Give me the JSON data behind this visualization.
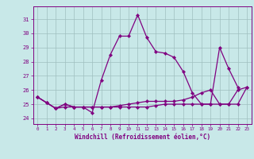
{
  "hours": [
    0,
    1,
    2,
    3,
    4,
    5,
    6,
    7,
    8,
    9,
    10,
    11,
    12,
    13,
    14,
    15,
    16,
    17,
    18,
    19,
    20,
    21,
    22,
    23
  ],
  "line1": [
    25.5,
    25.1,
    24.7,
    24.8,
    24.8,
    24.8,
    24.4,
    26.7,
    28.5,
    29.8,
    29.8,
    31.3,
    29.7,
    28.7,
    28.6,
    28.3,
    27.3,
    25.8,
    25.0,
    25.0,
    29.0,
    27.5,
    26.2,
    null
  ],
  "line2": [
    25.5,
    25.1,
    24.7,
    25.0,
    24.8,
    24.8,
    24.8,
    24.8,
    24.8,
    24.9,
    25.0,
    25.1,
    25.2,
    25.2,
    25.2,
    25.2,
    25.3,
    25.5,
    25.8,
    26.0,
    25.0,
    25.0,
    26.0,
    26.2
  ],
  "line3": [
    25.5,
    25.1,
    24.7,
    25.0,
    24.8,
    24.8,
    24.8,
    24.8,
    24.8,
    24.8,
    24.8,
    24.8,
    24.8,
    24.9,
    25.0,
    25.0,
    25.0,
    25.0,
    25.0,
    25.0,
    25.0,
    25.0,
    25.0,
    26.2
  ],
  "line_color": "#800080",
  "bg_color": "#c8e8e8",
  "grid_color": "#9fbfbf",
  "ylabel_ticks": [
    24,
    25,
    26,
    27,
    28,
    29,
    30,
    31
  ],
  "ylim": [
    23.6,
    31.9
  ],
  "xlim": [
    -0.5,
    23.5
  ],
  "xlabel": "Windchill (Refroidissement éolien,°C)"
}
